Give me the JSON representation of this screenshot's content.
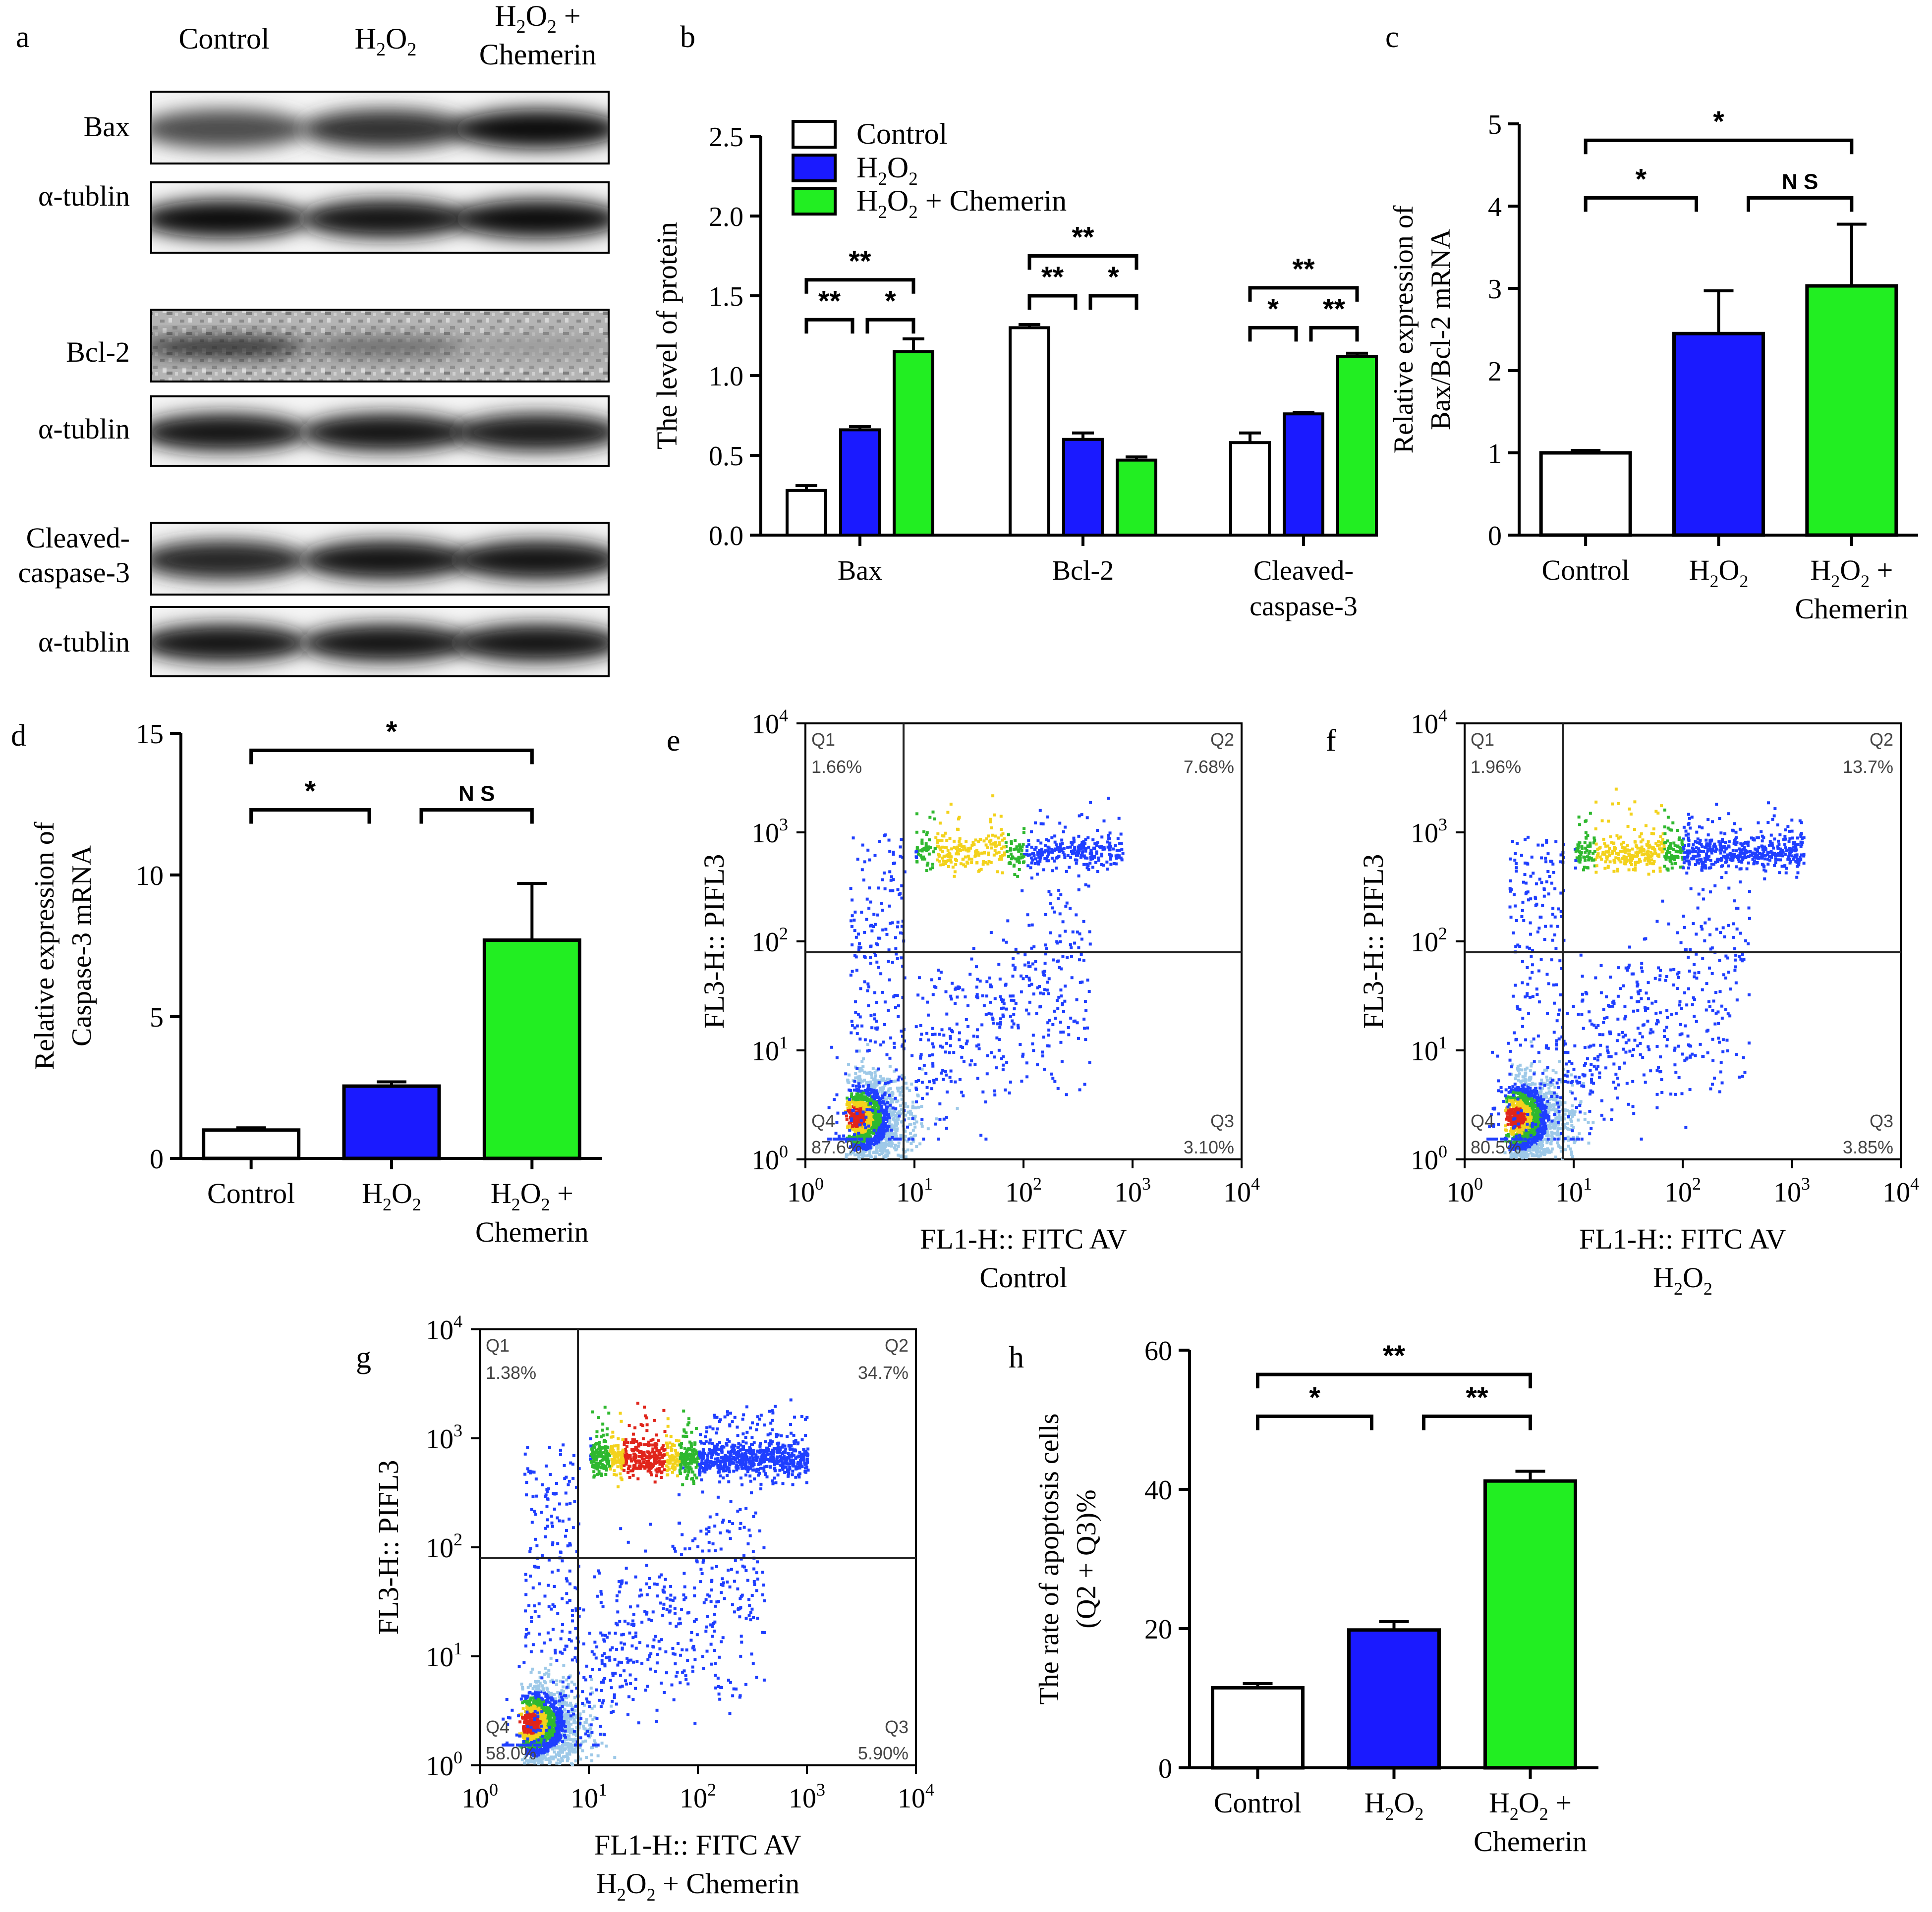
{
  "colors": {
    "control": "#ffffff",
    "h2o2": "#1a1aff",
    "chemerin": "#22ee22",
    "axis": "#000000"
  },
  "panel_a": {
    "label": "a",
    "lanes": [
      "Control",
      "H2O2",
      "H2O2 + Chemerin"
    ],
    "lane_labels": {
      "control": "Control",
      "h2o2_main": "H",
      "h2o2_sub": "2",
      "h2o2_o": "O",
      "h2o2_sub2": "2",
      "chem_line1_main": "H",
      "chem_line1_sub": "2",
      "chem_line1_o": "O",
      "chem_line1_sub2": "2",
      "chem_line1_plus": " +",
      "chem_line2": "Chemerin"
    },
    "blots": [
      {
        "name": "Bax",
        "intensity": [
          0.7,
          0.8,
          0.95
        ]
      },
      {
        "name": "α-tublin",
        "intensity": [
          0.95,
          0.9,
          0.95
        ]
      },
      {
        "name": "Bcl-2",
        "intensity": [
          0.85,
          0.6,
          0.4
        ]
      },
      {
        "name": "α-tublin",
        "intensity": [
          0.9,
          0.9,
          0.88
        ]
      },
      {
        "name": "Cleaved-caspase-3",
        "line1": "Cleaved-",
        "line2": "caspase-3",
        "intensity": [
          0.85,
          0.9,
          0.92
        ]
      },
      {
        "name": "α-tublin",
        "intensity": [
          0.9,
          0.92,
          0.92
        ]
      }
    ]
  },
  "chart_data": [
    {
      "panel": "b",
      "type": "bar",
      "ylabel": "The level of protein",
      "ylim": [
        0,
        2.5
      ],
      "yticks": [
        "0.0",
        "0.5",
        "1.0",
        "1.5",
        "2.0",
        "2.5"
      ],
      "ytick_values": [
        0,
        0.5,
        1.0,
        1.5,
        2.0,
        2.5
      ],
      "categories": [
        "Bax",
        "Bcl-2",
        "Cleaved-caspase-3"
      ],
      "category_lines": [
        [
          "Bax"
        ],
        [
          "Bcl-2"
        ],
        [
          "Cleaved-",
          "caspase-3"
        ]
      ],
      "series": [
        {
          "name": "Control",
          "values": [
            0.28,
            1.3,
            0.58
          ],
          "errors": [
            0.03,
            0.02,
            0.06
          ]
        },
        {
          "name": "H2O2",
          "values": [
            0.66,
            0.6,
            0.76
          ],
          "errors": [
            0.02,
            0.04,
            0.01
          ]
        },
        {
          "name": "H2O2 + Chemerin",
          "values": [
            1.15,
            0.47,
            1.12
          ],
          "errors": [
            0.08,
            0.02,
            0.02
          ]
        }
      ],
      "legend": {
        "control": "Control",
        "h2o2_h": "H",
        "h2o2_sub": "2",
        "h2o2_o": "O",
        "h2o2_sub2": "2",
        "chem_h": "H",
        "chem_sub": "2",
        "chem_o": "O",
        "chem_sub2": "2",
        "chem_rest": " + Chemerin"
      },
      "significance": [
        {
          "group": 0,
          "from": 0,
          "to": 1,
          "label": "**",
          "y": 1.35
        },
        {
          "group": 0,
          "from": 1,
          "to": 2,
          "label": "*",
          "y": 1.35
        },
        {
          "group": 0,
          "from": 0,
          "to": 2,
          "label": "**",
          "y": 1.6
        },
        {
          "group": 1,
          "from": 0,
          "to": 1,
          "label": "**",
          "y": 1.5
        },
        {
          "group": 1,
          "from": 1,
          "to": 2,
          "label": "*",
          "y": 1.5
        },
        {
          "group": 1,
          "from": 0,
          "to": 2,
          "label": "**",
          "y": 1.75
        },
        {
          "group": 2,
          "from": 0,
          "to": 1,
          "label": "*",
          "y": 1.3
        },
        {
          "group": 2,
          "from": 1,
          "to": 2,
          "label": "**",
          "y": 1.3
        },
        {
          "group": 2,
          "from": 0,
          "to": 2,
          "label": "**",
          "y": 1.55
        }
      ]
    },
    {
      "panel": "c",
      "type": "bar",
      "ylabel_line1": "Relative expression of",
      "ylabel_line2": "Bax/Bcl-2 mRNA",
      "ylim": [
        0,
        5
      ],
      "yticks": [
        "0",
        "1",
        "2",
        "3",
        "4",
        "5"
      ],
      "ytick_values": [
        0,
        1,
        2,
        3,
        4,
        5
      ],
      "categories": [
        "Control",
        "H2O2",
        "H2O2 + Chemerin"
      ],
      "values": [
        1.0,
        2.45,
        3.03
      ],
      "errors": [
        0.03,
        0.52,
        0.75
      ],
      "significance": [
        {
          "from": 0,
          "to": 1,
          "label": "*",
          "y": 4.1
        },
        {
          "from": 1,
          "to": 2,
          "label": "N S",
          "y": 4.1
        },
        {
          "from": 0,
          "to": 2,
          "label": "*",
          "y": 4.8
        }
      ]
    },
    {
      "panel": "d",
      "type": "bar",
      "ylabel_line1": "Relative expression of",
      "ylabel_line2": "Caspase-3 mRNA",
      "ylim": [
        0,
        15
      ],
      "yticks": [
        "0",
        "5",
        "10",
        "15"
      ],
      "ytick_values": [
        0,
        5,
        10,
        15
      ],
      "categories": [
        "Control",
        "H2O2",
        "H2O2 + Chemerin"
      ],
      "values": [
        1.0,
        2.55,
        7.7
      ],
      "errors": [
        0.08,
        0.15,
        2.0
      ],
      "significance": [
        {
          "from": 0,
          "to": 1,
          "label": "*",
          "y": 12.3
        },
        {
          "from": 1,
          "to": 2,
          "label": "N S",
          "y": 12.3
        },
        {
          "from": 0,
          "to": 2,
          "label": "*",
          "y": 14.4
        }
      ]
    },
    {
      "panel": "e",
      "type": "scatter",
      "xlabel": "FL1-H:: FITC AV",
      "subtitle": "Control",
      "ylabel": "FL3-H:: PIFL3",
      "xlim_log10": [
        0,
        4
      ],
      "ylim_log10": [
        0,
        4
      ],
      "gate_log10": [
        0.9,
        1.9
      ],
      "ticks_base": "10",
      "tick_exponents": [
        "0",
        "1",
        "2",
        "3",
        "4"
      ],
      "quadrants": {
        "Q1": "1.66%",
        "Q2": "7.68%",
        "Q3": "3.10%",
        "Q4": "87.6%"
      }
    },
    {
      "panel": "f",
      "type": "scatter",
      "xlabel": "FL1-H:: FITC AV",
      "subtitle_h": "H",
      "subtitle_sub": "2",
      "subtitle_o": "O",
      "subtitle_sub2": "2",
      "ylabel": "FL3-H:: PIFL3",
      "xlim_log10": [
        0,
        4
      ],
      "ylim_log10": [
        0,
        4
      ],
      "gate_log10": [
        0.9,
        1.9
      ],
      "ticks_base": "10",
      "tick_exponents": [
        "0",
        "1",
        "2",
        "3",
        "4"
      ],
      "quadrants": {
        "Q1": "1.96%",
        "Q2": "13.7%",
        "Q3": "3.85%",
        "Q4": "80.5%"
      }
    },
    {
      "panel": "g",
      "type": "scatter",
      "xlabel": "FL1-H:: FITC AV",
      "subtitle_h": "H",
      "subtitle_sub": "2",
      "subtitle_o": "O",
      "subtitle_sub2": "2",
      "subtitle_rest": " + Chemerin",
      "ylabel": "FL3-H:: PIFL3",
      "xlim_log10": [
        0,
        4
      ],
      "ylim_log10": [
        0,
        4
      ],
      "gate_log10": [
        0.9,
        1.9
      ],
      "ticks_base": "10",
      "tick_exponents": [
        "0",
        "1",
        "2",
        "3",
        "4"
      ],
      "quadrants": {
        "Q1": "1.38%",
        "Q2": "34.7%",
        "Q3": "5.90%",
        "Q4": "58.0%"
      }
    },
    {
      "panel": "h",
      "type": "bar",
      "ylabel_line1": "The rate of apoptosis cells",
      "ylabel_line2": "(Q2 + Q3)%",
      "ylim": [
        0,
        60
      ],
      "yticks": [
        "0",
        "20",
        "40",
        "60"
      ],
      "ytick_values": [
        0,
        20,
        40,
        60
      ],
      "categories": [
        "Control",
        "H2O2",
        "H2O2 + Chemerin"
      ],
      "values": [
        11.5,
        19.8,
        41.2
      ],
      "errors": [
        0.6,
        1.2,
        1.4
      ],
      "significance": [
        {
          "from": 0,
          "to": 1,
          "label": "*",
          "y": 50.5
        },
        {
          "from": 1,
          "to": 2,
          "label": "**",
          "y": 50.5
        },
        {
          "from": 0,
          "to": 2,
          "label": "**",
          "y": 56.5
        }
      ]
    }
  ],
  "xlabels": {
    "control": "Control",
    "h2o2": {
      "h": "H",
      "sub": "2",
      "o": "O",
      "sub2": "2"
    },
    "chem": {
      "h": "H",
      "sub": "2",
      "o": "O",
      "sub2": "2",
      "plus": " +",
      "line2": "Chemerin"
    }
  },
  "panel_labels": {
    "b": "b",
    "c": "c",
    "d": "d",
    "e": "e",
    "f": "f",
    "g": "g",
    "h": "h"
  }
}
